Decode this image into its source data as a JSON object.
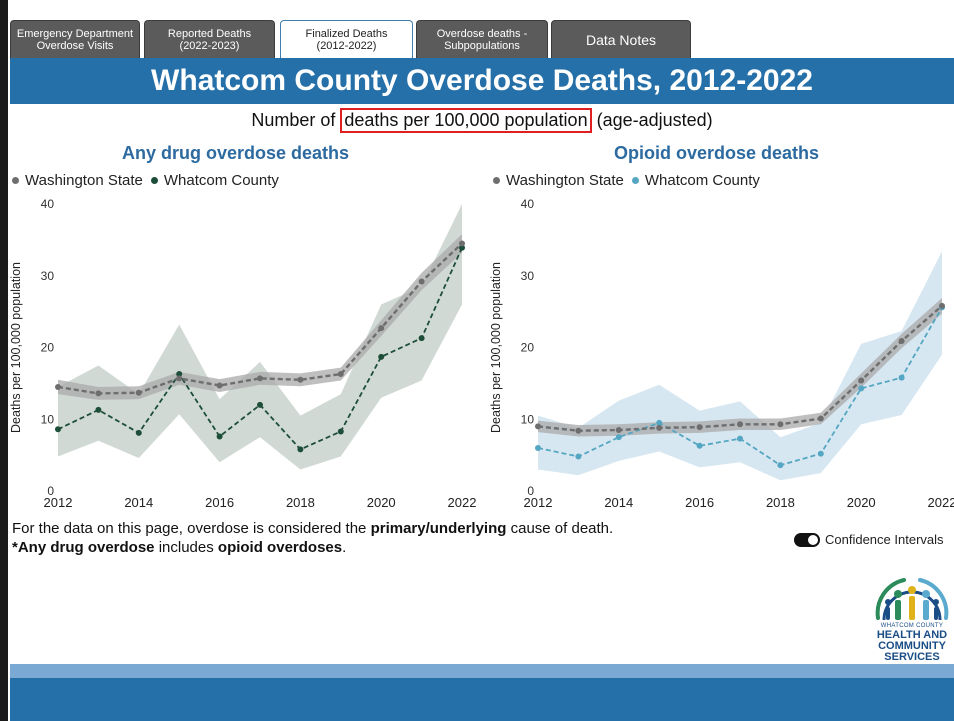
{
  "tabs": [
    {
      "line1": "Emergency Department",
      "line2": "Overdose Visits"
    },
    {
      "line1": "Reported Deaths",
      "line2": "(2022-2023)"
    },
    {
      "line1": "Finalized Deaths",
      "line2": "(2012-2022)"
    },
    {
      "line1": "Overdose deaths -",
      "line2": "Subpopulations"
    },
    {
      "line1": "Data Notes",
      "line2": ""
    }
  ],
  "banner_title": "Whatcom County Overdose Deaths, 2012-2022",
  "subtitle": {
    "pre": "Number of ",
    "highlight": "deaths per 100,000 population",
    "post": " (age-adjusted)"
  },
  "colors": {
    "state": "#6e6e6e",
    "whatcom_any": "#1d4e3a",
    "whatcom_opioid": "#55a6c2",
    "band_any": "#c9d2ce",
    "band_opioid": "#cfe3ee",
    "band_state": "#a9a9a9",
    "banner": "#2570a8",
    "title": "#2c6aa0"
  },
  "chart_data": [
    {
      "type": "line",
      "title": "Any drug overdose deaths",
      "ylabel": "Deaths per 100,000 population",
      "ylim": [
        0,
        40
      ],
      "yticks": [
        0,
        10,
        20,
        30,
        40
      ],
      "xticks": [
        2012,
        2014,
        2016,
        2018,
        2020,
        2022
      ],
      "x": [
        2012,
        2013,
        2014,
        2015,
        2016,
        2017,
        2018,
        2019,
        2020,
        2021,
        2022
      ],
      "series": [
        {
          "name": "Washington State",
          "values": [
            14.5,
            13.6,
            13.7,
            15.7,
            14.7,
            15.7,
            15.5,
            16.3,
            22.7,
            29.2,
            34.5
          ],
          "ci_low": [
            13.5,
            12.7,
            12.8,
            14.8,
            13.8,
            14.8,
            14.6,
            15.4,
            21.6,
            28.0,
            33.2
          ],
          "ci_high": [
            15.5,
            14.5,
            14.6,
            16.6,
            15.6,
            16.6,
            16.4,
            17.2,
            23.8,
            30.4,
            35.8
          ]
        },
        {
          "name": "Whatcom County",
          "values": [
            8.6,
            11.3,
            8.1,
            16.3,
            7.6,
            12.0,
            5.8,
            8.3,
            18.7,
            21.3,
            33.9
          ],
          "ci_low": [
            4.8,
            7.0,
            4.6,
            10.7,
            4.0,
            7.5,
            3.0,
            4.8,
            13.0,
            15.4,
            26.0
          ],
          "ci_high": [
            14.5,
            17.5,
            13.5,
            23.2,
            12.8,
            18.0,
            10.5,
            13.5,
            26.0,
            28.5,
            40.0
          ]
        }
      ]
    },
    {
      "type": "line",
      "title": "Opioid overdose deaths",
      "ylabel": "Deaths per 100,000 population",
      "ylim": [
        0,
        40
      ],
      "yticks": [
        0,
        10,
        20,
        30,
        40
      ],
      "xticks": [
        2012,
        2014,
        2016,
        2018,
        2020,
        2022
      ],
      "x": [
        2012,
        2013,
        2014,
        2015,
        2016,
        2017,
        2018,
        2019,
        2020,
        2021,
        2022
      ],
      "series": [
        {
          "name": "Washington State",
          "values": [
            9.0,
            8.4,
            8.5,
            8.8,
            8.9,
            9.3,
            9.3,
            10.1,
            15.4,
            20.9,
            25.8
          ],
          "ci_low": [
            8.2,
            7.6,
            7.7,
            8.0,
            8.1,
            8.5,
            8.5,
            9.3,
            14.4,
            19.9,
            24.7
          ],
          "ci_high": [
            9.8,
            9.2,
            9.3,
            9.6,
            9.7,
            10.1,
            10.1,
            10.9,
            16.4,
            21.9,
            26.9
          ]
        },
        {
          "name": "Whatcom County",
          "values": [
            6.0,
            4.8,
            7.5,
            9.5,
            6.3,
            7.3,
            3.6,
            5.2,
            14.3,
            15.8,
            25.6
          ],
          "ci_low": [
            3.0,
            2.2,
            4.2,
            5.5,
            3.3,
            4.0,
            1.5,
            2.5,
            9.3,
            10.6,
            19.0
          ],
          "ci_high": [
            10.5,
            8.8,
            12.6,
            14.8,
            11.2,
            12.5,
            7.5,
            9.5,
            20.5,
            22.3,
            33.4
          ]
        }
      ]
    }
  ],
  "footnote": {
    "line1_pre": "For the data on this page, overdose is considered the ",
    "line1_bold": "primary/underlying",
    "line1_post": " cause of death.",
    "line2_bold1": "*Any drug overdose",
    "line2_mid": " includes ",
    "line2_bold2": "opioid overdoses",
    "line2_post": "."
  },
  "toggle_label": "Confidence Intervals",
  "logo": {
    "line1": "WHATCOM COUNTY",
    "line2": "HEALTH AND",
    "line3": "COMMUNITY",
    "line4": "SERVICES"
  }
}
